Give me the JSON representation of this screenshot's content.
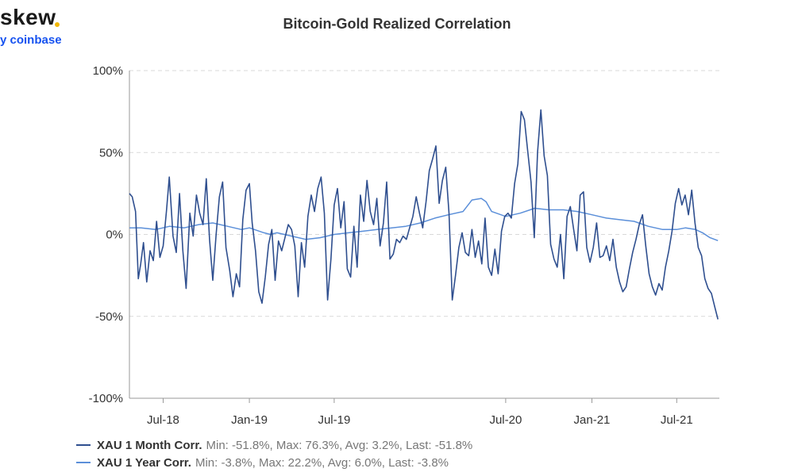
{
  "logo": {
    "word": "skew",
    "sub": "y coinbase"
  },
  "chart_data": {
    "type": "line",
    "title": "Bitcoin-Gold Realized Correlation",
    "xlabel": "",
    "ylabel": "",
    "x_range": [
      "2018-04-20",
      "2021-09-30"
    ],
    "ylim": [
      -100,
      100
    ],
    "y_ticks": [
      100,
      50,
      0,
      -50,
      -100
    ],
    "y_tick_labels": [
      "100%",
      "50%",
      "0%",
      "-50%",
      "-100%"
    ],
    "x_ticks": [
      "2018-07-01",
      "2019-01-01",
      "2019-07-01",
      "2020-07-01",
      "2021-01-01",
      "2021-07-01"
    ],
    "x_tick_labels": [
      "Jul-18",
      "Jan-19",
      "Jul-19",
      "Jul-20",
      "Jan-21",
      "Jul-21"
    ],
    "grid": "horizontal dashed",
    "legend_position": "bottom-left",
    "series": [
      {
        "name": "XAU 1 Month Corr.",
        "stats": "Min: -51.8%, Max: 76.3%, Avg: 3.2%, Last: -51.8%",
        "color": "#2f4f8f",
        "points": [
          [
            "2018-04-20",
            25
          ],
          [
            "2018-04-26",
            23
          ],
          [
            "2018-05-03",
            14
          ],
          [
            "2018-05-09",
            -27
          ],
          [
            "2018-05-14",
            -18
          ],
          [
            "2018-05-20",
            -5
          ],
          [
            "2018-05-27",
            -29
          ],
          [
            "2018-06-03",
            -10
          ],
          [
            "2018-06-10",
            -16
          ],
          [
            "2018-06-17",
            8
          ],
          [
            "2018-06-24",
            -14
          ],
          [
            "2018-07-01",
            -7
          ],
          [
            "2018-07-08",
            14
          ],
          [
            "2018-07-14",
            35
          ],
          [
            "2018-07-22",
            -1
          ],
          [
            "2018-07-29",
            -11
          ],
          [
            "2018-08-05",
            25
          ],
          [
            "2018-08-12",
            -10
          ],
          [
            "2018-08-19",
            -33
          ],
          [
            "2018-08-27",
            13
          ],
          [
            "2018-09-03",
            -1
          ],
          [
            "2018-09-10",
            24
          ],
          [
            "2018-09-17",
            13
          ],
          [
            "2018-09-24",
            6
          ],
          [
            "2018-10-01",
            34
          ],
          [
            "2018-10-08",
            -3
          ],
          [
            "2018-10-15",
            -28
          ],
          [
            "2018-10-22",
            0
          ],
          [
            "2018-10-29",
            23
          ],
          [
            "2018-11-05",
            32
          ],
          [
            "2018-11-12",
            -8
          ],
          [
            "2018-11-20",
            -22
          ],
          [
            "2018-11-27",
            -38
          ],
          [
            "2018-12-04",
            -24
          ],
          [
            "2018-12-11",
            -32
          ],
          [
            "2018-12-18",
            9
          ],
          [
            "2018-12-25",
            27
          ],
          [
            "2019-01-01",
            31
          ],
          [
            "2019-01-07",
            7
          ],
          [
            "2019-01-14",
            -10
          ],
          [
            "2019-01-21",
            -35
          ],
          [
            "2019-01-28",
            -42
          ],
          [
            "2019-02-04",
            -26
          ],
          [
            "2019-02-11",
            -6
          ],
          [
            "2019-02-18",
            3
          ],
          [
            "2019-02-25",
            -28
          ],
          [
            "2019-03-04",
            -4
          ],
          [
            "2019-03-11",
            -10
          ],
          [
            "2019-03-18",
            -2
          ],
          [
            "2019-03-25",
            6
          ],
          [
            "2019-04-01",
            3
          ],
          [
            "2019-04-08",
            -7
          ],
          [
            "2019-04-15",
            -38
          ],
          [
            "2019-04-22",
            -5
          ],
          [
            "2019-04-29",
            -20
          ],
          [
            "2019-05-06",
            11
          ],
          [
            "2019-05-13",
            24
          ],
          [
            "2019-05-20",
            14
          ],
          [
            "2019-05-27",
            28
          ],
          [
            "2019-06-03",
            35
          ],
          [
            "2019-06-10",
            13
          ],
          [
            "2019-06-17",
            -40
          ],
          [
            "2019-06-24",
            -15
          ],
          [
            "2019-07-01",
            18
          ],
          [
            "2019-07-08",
            28
          ],
          [
            "2019-07-15",
            4
          ],
          [
            "2019-07-22",
            20
          ],
          [
            "2019-07-29",
            -21
          ],
          [
            "2019-08-05",
            -26
          ],
          [
            "2019-08-12",
            5
          ],
          [
            "2019-08-19",
            -20
          ],
          [
            "2019-08-26",
            24
          ],
          [
            "2019-09-02",
            8
          ],
          [
            "2019-09-09",
            33
          ],
          [
            "2019-09-16",
            14
          ],
          [
            "2019-09-23",
            6
          ],
          [
            "2019-09-30",
            22
          ],
          [
            "2019-10-07",
            -7
          ],
          [
            "2019-10-14",
            7
          ],
          [
            "2019-10-21",
            32
          ],
          [
            "2019-10-28",
            -15
          ],
          [
            "2019-11-04",
            -12
          ],
          [
            "2019-11-11",
            -3
          ],
          [
            "2019-11-18",
            -5
          ],
          [
            "2019-11-25",
            -1
          ],
          [
            "2019-12-02",
            -3
          ],
          [
            "2019-12-09",
            4
          ],
          [
            "2019-12-16",
            11
          ],
          [
            "2019-12-23",
            23
          ],
          [
            "2019-12-30",
            13
          ],
          [
            "2020-01-06",
            4
          ],
          [
            "2020-01-13",
            20
          ],
          [
            "2020-01-20",
            39
          ],
          [
            "2020-01-27",
            46
          ],
          [
            "2020-02-03",
            54
          ],
          [
            "2020-02-10",
            19
          ],
          [
            "2020-02-17",
            33
          ],
          [
            "2020-02-24",
            41
          ],
          [
            "2020-03-02",
            13
          ],
          [
            "2020-03-09",
            -40
          ],
          [
            "2020-03-16",
            -25
          ],
          [
            "2020-03-23",
            -8
          ],
          [
            "2020-03-30",
            1
          ],
          [
            "2020-04-06",
            -11
          ],
          [
            "2020-04-13",
            -13
          ],
          [
            "2020-04-20",
            3
          ],
          [
            "2020-04-27",
            -14
          ],
          [
            "2020-05-04",
            -4
          ],
          [
            "2020-05-11",
            -18
          ],
          [
            "2020-05-18",
            10
          ],
          [
            "2020-05-25",
            -20
          ],
          [
            "2020-06-01",
            -25
          ],
          [
            "2020-06-08",
            -9
          ],
          [
            "2020-06-15",
            -24
          ],
          [
            "2020-06-22",
            2
          ],
          [
            "2020-06-29",
            11
          ],
          [
            "2020-07-06",
            13
          ],
          [
            "2020-07-13",
            10
          ],
          [
            "2020-07-20",
            31
          ],
          [
            "2020-07-27",
            43
          ],
          [
            "2020-08-03",
            75
          ],
          [
            "2020-08-10",
            70
          ],
          [
            "2020-08-17",
            51
          ],
          [
            "2020-08-24",
            32
          ],
          [
            "2020-08-31",
            -2
          ],
          [
            "2020-09-07",
            50
          ],
          [
            "2020-09-14",
            76
          ],
          [
            "2020-09-21",
            48
          ],
          [
            "2020-09-28",
            36
          ],
          [
            "2020-10-05",
            -6
          ],
          [
            "2020-10-12",
            -15
          ],
          [
            "2020-10-19",
            -20
          ],
          [
            "2020-10-26",
            0
          ],
          [
            "2020-11-02",
            -27
          ],
          [
            "2020-11-09",
            11
          ],
          [
            "2020-11-16",
            17
          ],
          [
            "2020-11-23",
            3
          ],
          [
            "2020-11-30",
            -10
          ],
          [
            "2020-12-07",
            24
          ],
          [
            "2020-12-14",
            26
          ],
          [
            "2020-12-21",
            -8
          ],
          [
            "2020-12-28",
            -17
          ],
          [
            "2021-01-04",
            -8
          ],
          [
            "2021-01-11",
            7
          ],
          [
            "2021-01-18",
            -14
          ],
          [
            "2021-01-25",
            -13
          ],
          [
            "2021-02-01",
            -7
          ],
          [
            "2021-02-08",
            -16
          ],
          [
            "2021-02-15",
            -3
          ],
          [
            "2021-02-22",
            -20
          ],
          [
            "2021-03-01",
            -29
          ],
          [
            "2021-03-08",
            -35
          ],
          [
            "2021-03-15",
            -32
          ],
          [
            "2021-03-22",
            -21
          ],
          [
            "2021-03-29",
            -11
          ],
          [
            "2021-04-05",
            -3
          ],
          [
            "2021-04-12",
            6
          ],
          [
            "2021-04-19",
            12
          ],
          [
            "2021-04-26",
            -7
          ],
          [
            "2021-05-03",
            -24
          ],
          [
            "2021-05-10",
            -32
          ],
          [
            "2021-05-17",
            -37
          ],
          [
            "2021-05-24",
            -30
          ],
          [
            "2021-05-31",
            -34
          ],
          [
            "2021-06-07",
            -20
          ],
          [
            "2021-06-14",
            -10
          ],
          [
            "2021-06-21",
            2
          ],
          [
            "2021-06-28",
            19
          ],
          [
            "2021-07-05",
            28
          ],
          [
            "2021-07-12",
            18
          ],
          [
            "2021-07-19",
            24
          ],
          [
            "2021-07-26",
            12
          ],
          [
            "2021-08-02",
            27
          ],
          [
            "2021-08-09",
            7
          ],
          [
            "2021-08-16",
            -8
          ],
          [
            "2021-08-23",
            -13
          ],
          [
            "2021-08-30",
            -27
          ],
          [
            "2021-09-06",
            -33
          ],
          [
            "2021-09-13",
            -36
          ],
          [
            "2021-09-20",
            -44
          ],
          [
            "2021-09-27",
            -51.8
          ]
        ]
      },
      {
        "name": "XAU 1 Year Corr.",
        "stats": "Min: -3.8%, Max: 22.2%, Avg: 6.0%, Last: -3.8%",
        "color": "#5b8fd9",
        "points": [
          [
            "2018-04-20",
            4
          ],
          [
            "2018-05-15",
            4
          ],
          [
            "2018-06-15",
            3
          ],
          [
            "2018-07-15",
            5
          ],
          [
            "2018-08-15",
            4
          ],
          [
            "2018-09-15",
            6
          ],
          [
            "2018-10-15",
            7
          ],
          [
            "2018-11-15",
            5
          ],
          [
            "2018-12-15",
            3
          ],
          [
            "2019-01-01",
            4
          ],
          [
            "2019-02-01",
            1
          ],
          [
            "2019-02-15",
            0
          ],
          [
            "2019-03-01",
            1
          ],
          [
            "2019-04-01",
            -1
          ],
          [
            "2019-05-01",
            -3
          ],
          [
            "2019-06-01",
            -2
          ],
          [
            "2019-07-01",
            0
          ],
          [
            "2019-08-01",
            1
          ],
          [
            "2019-09-01",
            2
          ],
          [
            "2019-10-01",
            3
          ],
          [
            "2019-11-01",
            4
          ],
          [
            "2019-12-01",
            5
          ],
          [
            "2020-01-01",
            7
          ],
          [
            "2020-02-01",
            10
          ],
          [
            "2020-03-01",
            12
          ],
          [
            "2020-04-01",
            14
          ],
          [
            "2020-04-20",
            21
          ],
          [
            "2020-05-10",
            22
          ],
          [
            "2020-05-20",
            20
          ],
          [
            "2020-06-01",
            14
          ],
          [
            "2020-07-01",
            11
          ],
          [
            "2020-08-01",
            13
          ],
          [
            "2020-09-01",
            16
          ],
          [
            "2020-10-01",
            15
          ],
          [
            "2020-11-01",
            15
          ],
          [
            "2020-12-01",
            14
          ],
          [
            "2021-01-01",
            12
          ],
          [
            "2021-02-01",
            10
          ],
          [
            "2021-03-01",
            9
          ],
          [
            "2021-04-01",
            8
          ],
          [
            "2021-05-01",
            5
          ],
          [
            "2021-06-01",
            3
          ],
          [
            "2021-07-01",
            3
          ],
          [
            "2021-07-20",
            4
          ],
          [
            "2021-08-10",
            3
          ],
          [
            "2021-08-25",
            1
          ],
          [
            "2021-09-10",
            -2
          ],
          [
            "2021-09-27",
            -3.8
          ]
        ]
      }
    ]
  }
}
